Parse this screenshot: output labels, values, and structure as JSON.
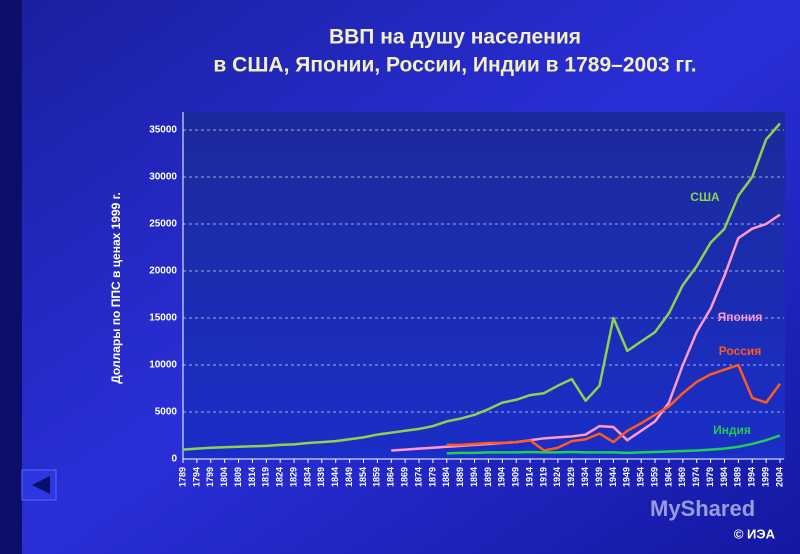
{
  "chart_data": {
    "type": "line",
    "title": [
      "ВВП на душу населения",
      "в США, Японии, России, Индии в 1789–2003 гг."
    ],
    "y_label": "Доллары по ППС в ценах 1999 г.",
    "x": [
      1789,
      1794,
      1799,
      1804,
      1809,
      1814,
      1819,
      1824,
      1829,
      1834,
      1839,
      1844,
      1849,
      1854,
      1859,
      1864,
      1869,
      1874,
      1879,
      1884,
      1889,
      1894,
      1899,
      1904,
      1909,
      1914,
      1919,
      1924,
      1929,
      1934,
      1939,
      1944,
      1949,
      1954,
      1959,
      1964,
      1969,
      1974,
      1979,
      1984,
      1989,
      1994,
      1999,
      2004
    ],
    "xlim": [
      1789,
      2004
    ],
    "xticks": [
      1789,
      1794,
      1799,
      1804,
      1809,
      1814,
      1819,
      1824,
      1829,
      1834,
      1839,
      1844,
      1849,
      1854,
      1859,
      1864,
      1869,
      1874,
      1879,
      1884,
      1889,
      1894,
      1899,
      1904,
      1909,
      1914,
      1919,
      1924,
      1929,
      1934,
      1939,
      1944,
      1949,
      1954,
      1959,
      1964,
      1969,
      1974,
      1979,
      1984,
      1989,
      1994,
      1999,
      2004
    ],
    "ylim": [
      0,
      35000
    ],
    "yticks": [
      0,
      5000,
      10000,
      15000,
      20000,
      25000,
      30000,
      35000
    ],
    "grid": true,
    "series": [
      {
        "name": "США",
        "color": "#8fd14f",
        "values": [
          1000,
          1100,
          1200,
          1250,
          1300,
          1350,
          1400,
          1500,
          1550,
          1700,
          1800,
          1900,
          2100,
          2300,
          2600,
          2800,
          3000,
          3200,
          3500,
          4000,
          4300,
          4700,
          5300,
          6000,
          6300,
          6800,
          7000,
          7800,
          8500,
          6200,
          7800,
          15000,
          11500,
          12500,
          13500,
          15500,
          18500,
          20500,
          23000,
          24500,
          28000,
          30000,
          34000,
          35700
        ]
      },
      {
        "name": "Япония",
        "color": "#ff99cc",
        "values": [
          null,
          null,
          null,
          null,
          null,
          null,
          null,
          null,
          null,
          null,
          null,
          null,
          null,
          null,
          null,
          900,
          1000,
          1100,
          1200,
          1300,
          1400,
          1500,
          1600,
          1700,
          1800,
          2000,
          2200,
          2300,
          2400,
          2600,
          3500,
          3400,
          2000,
          3000,
          4000,
          6000,
          10000,
          13500,
          16000,
          19500,
          23500,
          24500,
          25000,
          26000
        ]
      },
      {
        "name": "Россия",
        "color": "#ff5a1f",
        "values": [
          null,
          null,
          null,
          null,
          null,
          null,
          null,
          null,
          null,
          null,
          null,
          null,
          null,
          null,
          null,
          null,
          null,
          null,
          null,
          1500,
          1500,
          1600,
          1700,
          1700,
          1800,
          2000,
          900,
          1200,
          1900,
          2100,
          2700,
          1800,
          3000,
          3800,
          4700,
          5600,
          7000,
          8200,
          9000,
          9500,
          10000,
          6500,
          6000,
          8000
        ]
      },
      {
        "name": "Индия",
        "color": "#22cc55",
        "values": [
          null,
          null,
          null,
          null,
          null,
          null,
          null,
          null,
          null,
          null,
          null,
          null,
          null,
          null,
          null,
          null,
          null,
          null,
          null,
          600,
          650,
          650,
          700,
          700,
          700,
          750,
          700,
          700,
          750,
          700,
          700,
          700,
          650,
          700,
          750,
          800,
          850,
          900,
          1000,
          1100,
          1300,
          1600,
          2000,
          2500
        ]
      }
    ],
    "credit": "© ИЭА",
    "watermark": "MyShared"
  }
}
